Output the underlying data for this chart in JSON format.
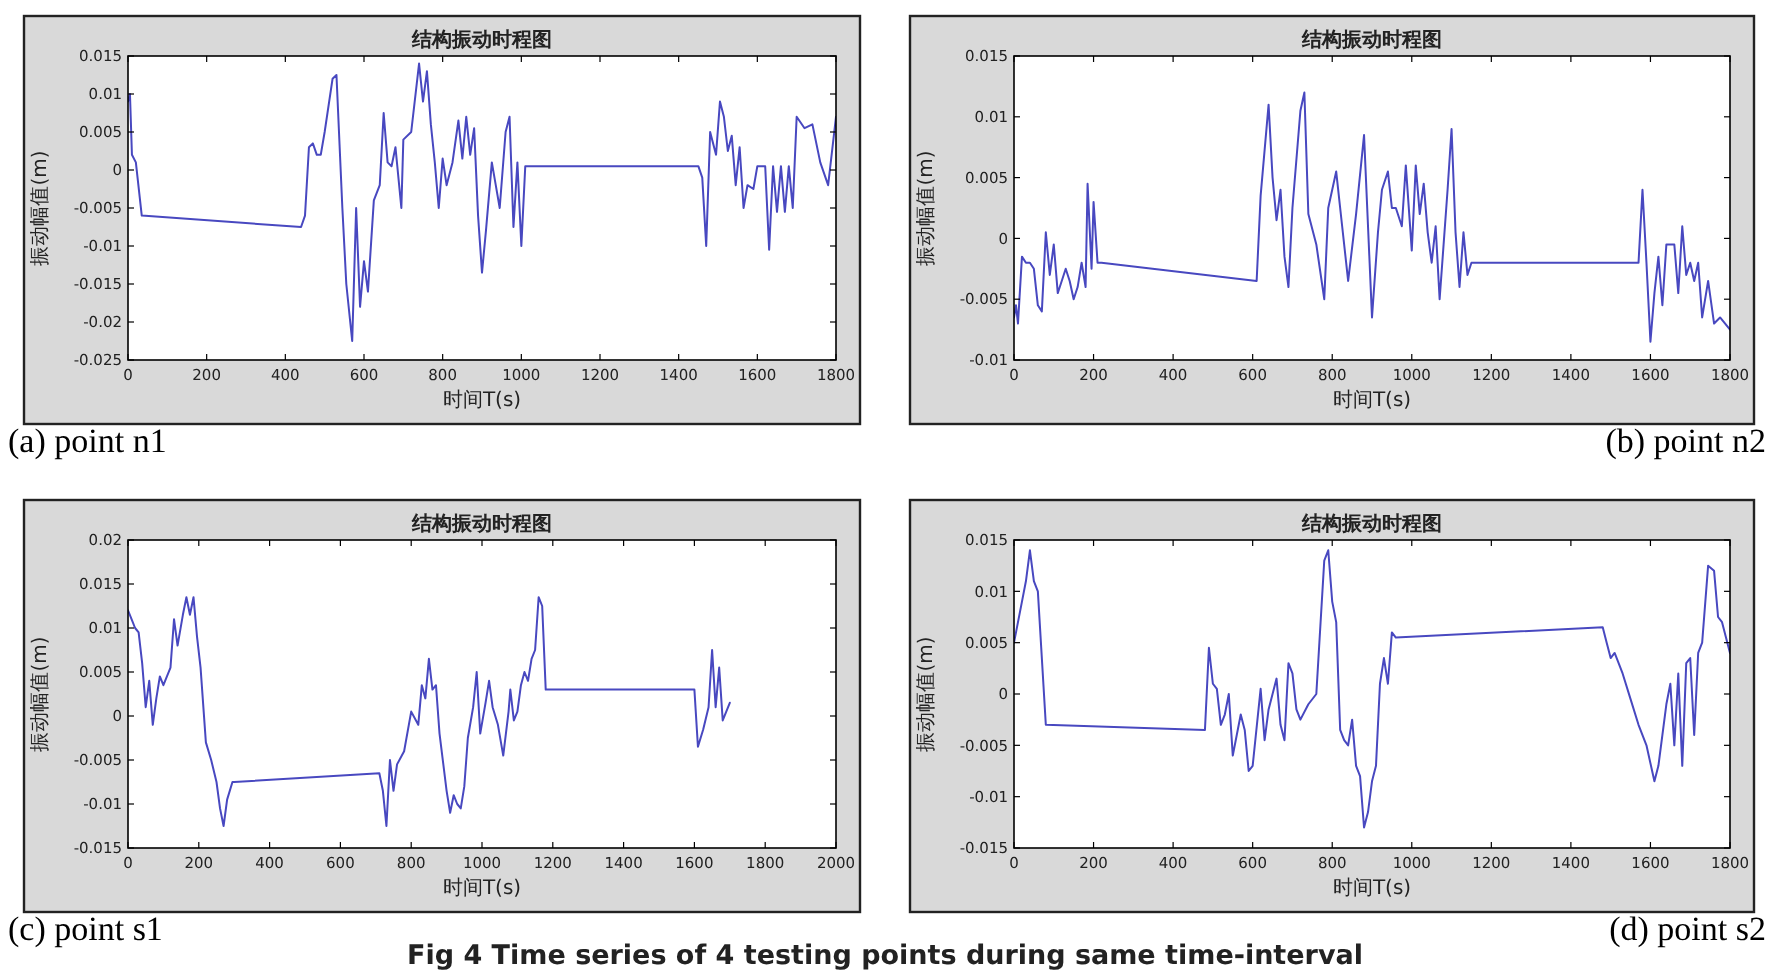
{
  "chart_data": [
    {
      "type": "line",
      "title": "结构振动时程图",
      "xlabel": "时间T(s)",
      "ylabel": "振动幅值(m)",
      "annotations": [
        "(a) point n1"
      ],
      "color": "#4848c0",
      "grid": false,
      "xlim": [
        0,
        1800
      ],
      "xticks": [
        0,
        200,
        400,
        600,
        800,
        1000,
        1200,
        1400,
        1600,
        1800
      ],
      "ylim": [
        -0.025,
        0.015
      ],
      "yticks": [
        -0.025,
        -0.02,
        -0.015,
        -0.01,
        -0.005,
        0,
        0.005,
        0.01,
        0.015
      ],
      "x": [
        0,
        5,
        10,
        20,
        35,
        440,
        450,
        460,
        470,
        480,
        490,
        500,
        520,
        530,
        545,
        555,
        570,
        580,
        590,
        600,
        610,
        625,
        640,
        650,
        660,
        670,
        680,
        695,
        700,
        720,
        740,
        750,
        760,
        770,
        780,
        790,
        800,
        810,
        825,
        840,
        850,
        860,
        870,
        880,
        890,
        900,
        910,
        925,
        935,
        945,
        960,
        970,
        980,
        990,
        1000,
        1010,
        1450,
        1460,
        1470,
        1480,
        1495,
        1505,
        1515,
        1525,
        1535,
        1545,
        1555,
        1565,
        1575,
        1590,
        1600,
        1620,
        1630,
        1640,
        1650,
        1660,
        1670,
        1680,
        1690,
        1700,
        1720,
        1740,
        1760,
        1780,
        1800
      ],
      "values": [
        0.009,
        0.01,
        0.002,
        0.001,
        -0.006,
        -0.0075,
        -0.006,
        0.003,
        0.0035,
        0.002,
        0.002,
        0.005,
        0.012,
        0.0125,
        -0.005,
        -0.015,
        -0.0225,
        -0.005,
        -0.018,
        -0.012,
        -0.016,
        -0.004,
        -0.002,
        0.0075,
        0.001,
        0.0005,
        0.003,
        -0.005,
        0.004,
        0.005,
        0.014,
        0.009,
        0.013,
        0.006,
        0.001,
        -0.005,
        0.0015,
        -0.002,
        0.001,
        0.0065,
        0.0015,
        0.007,
        0.002,
        0.0055,
        -0.006,
        -0.0135,
        -0.008,
        0.001,
        -0.002,
        -0.005,
        0.005,
        0.007,
        -0.0075,
        0.001,
        -0.01,
        0.0005,
        0.0005,
        -0.001,
        -0.01,
        0.005,
        0.002,
        0.009,
        0.007,
        0.0025,
        0.0045,
        -0.002,
        0.003,
        -0.005,
        -0.002,
        -0.0025,
        0.0005,
        0.0005,
        -0.0105,
        0.0005,
        -0.0055,
        0.0005,
        -0.0055,
        0.0005,
        -0.005,
        0.007,
        0.0055,
        0.006,
        0.001,
        -0.002,
        0.007
      ]
    },
    {
      "type": "line",
      "title": "结构振动时程图",
      "xlabel": "时间T(s)",
      "ylabel": "振动幅值(m)",
      "annotations": [
        "(b) point n2"
      ],
      "color": "#4848c0",
      "grid": false,
      "xlim": [
        0,
        1800
      ],
      "xticks": [
        0,
        200,
        400,
        600,
        800,
        1000,
        1200,
        1400,
        1600,
        1800
      ],
      "ylim": [
        -0.01,
        0.015
      ],
      "yticks": [
        -0.01,
        -0.005,
        0,
        0.005,
        0.01,
        0.015
      ],
      "x": [
        0,
        5,
        10,
        20,
        30,
        40,
        50,
        60,
        70,
        80,
        90,
        100,
        110,
        120,
        130,
        140,
        150,
        160,
        170,
        180,
        185,
        195,
        200,
        210,
        220,
        610,
        620,
        640,
        650,
        660,
        670,
        680,
        690,
        700,
        720,
        730,
        740,
        760,
        780,
        790,
        810,
        825,
        840,
        860,
        880,
        900,
        915,
        925,
        940,
        950,
        960,
        975,
        985,
        1000,
        1010,
        1020,
        1030,
        1040,
        1050,
        1060,
        1070,
        1090,
        1100,
        1110,
        1120,
        1130,
        1140,
        1150,
        1570,
        1580,
        1590,
        1600,
        1610,
        1620,
        1630,
        1640,
        1660,
        1670,
        1680,
        1690,
        1700,
        1710,
        1720,
        1730,
        1745,
        1760,
        1775,
        1800
      ],
      "values": [
        -0.0065,
        -0.0055,
        -0.007,
        -0.0015,
        -0.002,
        -0.002,
        -0.0025,
        -0.0055,
        -0.006,
        0.0005,
        -0.003,
        -0.0005,
        -0.0045,
        -0.0035,
        -0.0025,
        -0.0035,
        -0.005,
        -0.004,
        -0.002,
        -0.004,
        0.0045,
        -0.0025,
        0.003,
        -0.002,
        -0.002,
        -0.0035,
        0.0035,
        0.011,
        0.005,
        0.0015,
        0.004,
        -0.0015,
        -0.004,
        0.0025,
        0.0105,
        0.012,
        0.002,
        -0.0005,
        -0.005,
        0.0025,
        0.0055,
        0.001,
        -0.0035,
        0.002,
        0.0085,
        -0.0065,
        0.0005,
        0.004,
        0.0055,
        0.0025,
        0.0025,
        0.001,
        0.006,
        -0.001,
        0.006,
        0.002,
        0.0045,
        0.0005,
        -0.002,
        0.001,
        -0.005,
        0.004,
        0.009,
        0.0005,
        -0.004,
        0.0005,
        -0.003,
        -0.002,
        -0.002,
        0.004,
        -0.002,
        -0.0085,
        -0.0045,
        -0.0015,
        -0.0055,
        -0.0005,
        -0.0005,
        -0.0045,
        0.001,
        -0.003,
        -0.002,
        -0.0035,
        -0.002,
        -0.0065,
        -0.0035,
        -0.007,
        -0.0065,
        -0.0075
      ]
    },
    {
      "type": "line",
      "title": "结构振动时程图",
      "xlabel": "时间T(s)",
      "ylabel": "振动幅值(m)",
      "annotations": [
        "(c) point s1"
      ],
      "color": "#4848c0",
      "grid": false,
      "xlim": [
        0,
        2000
      ],
      "xticks": [
        0,
        200,
        400,
        600,
        800,
        1000,
        1200,
        1400,
        1600,
        1800,
        2000
      ],
      "ylim": [
        -0.015,
        0.02
      ],
      "yticks": [
        -0.015,
        -0.01,
        -0.005,
        0,
        0.005,
        0.01,
        0.015,
        0.02
      ],
      "x": [
        0,
        10,
        20,
        30,
        40,
        50,
        60,
        70,
        80,
        90,
        100,
        120,
        130,
        140,
        155,
        165,
        175,
        185,
        195,
        205,
        220,
        235,
        250,
        260,
        270,
        280,
        295,
        300,
        710,
        720,
        730,
        740,
        750,
        760,
        780,
        800,
        820,
        830,
        840,
        850,
        860,
        870,
        880,
        900,
        910,
        920,
        930,
        940,
        950,
        960,
        975,
        985,
        995,
        1010,
        1020,
        1030,
        1045,
        1060,
        1075,
        1080,
        1090,
        1100,
        1110,
        1120,
        1130,
        1140,
        1150,
        1160,
        1170,
        1180,
        1600,
        1610,
        1625,
        1640,
        1650,
        1660,
        1670,
        1680,
        1690,
        1700
      ],
      "values": [
        0.012,
        0.011,
        0.01,
        0.0095,
        0.006,
        0.001,
        0.004,
        -0.001,
        0.002,
        0.0045,
        0.0035,
        0.0055,
        0.011,
        0.008,
        0.0115,
        0.0135,
        0.0115,
        0.0135,
        0.009,
        0.0055,
        -0.003,
        -0.005,
        -0.0075,
        -0.0105,
        -0.0125,
        -0.0095,
        -0.0075,
        -0.0075,
        -0.0065,
        -0.0085,
        -0.0125,
        -0.005,
        -0.0085,
        -0.0055,
        -0.004,
        0.0005,
        -0.001,
        0.0035,
        0.002,
        0.0065,
        0.003,
        0.0035,
        -0.002,
        -0.0085,
        -0.011,
        -0.009,
        -0.01,
        -0.0105,
        -0.008,
        -0.0025,
        0.001,
        0.005,
        -0.002,
        0.0015,
        0.004,
        0.001,
        -0.001,
        -0.0045,
        0.0005,
        0.003,
        -0.0005,
        0.0005,
        0.0035,
        0.005,
        0.004,
        0.0065,
        0.0075,
        0.0135,
        0.0125,
        0.003,
        0.003,
        -0.0035,
        -0.0015,
        0.001,
        0.0075,
        0.001,
        0.0055,
        -0.0005,
        0.0005,
        0.0015
      ]
    },
    {
      "type": "line",
      "title": "结构振动时程图",
      "xlabel": "时间T(s)",
      "ylabel": "振动幅值(m)",
      "annotations": [
        "(d) point s2",
        "Fig 4 Time series of 4 testing points during same time-interval"
      ],
      "color": "#4848c0",
      "grid": false,
      "xlim": [
        0,
        1800
      ],
      "xticks": [
        0,
        200,
        400,
        600,
        800,
        1000,
        1200,
        1400,
        1600,
        1800
      ],
      "ylim": [
        -0.015,
        0.015
      ],
      "yticks": [
        -0.015,
        -0.01,
        -0.005,
        0,
        0.005,
        0.01,
        0.015
      ],
      "x": [
        0,
        10,
        20,
        30,
        40,
        50,
        60,
        80,
        480,
        490,
        500,
        510,
        520,
        530,
        540,
        550,
        560,
        570,
        580,
        590,
        600,
        620,
        630,
        640,
        660,
        670,
        680,
        690,
        700,
        710,
        720,
        740,
        760,
        780,
        790,
        800,
        810,
        820,
        830,
        840,
        850,
        860,
        870,
        880,
        890,
        900,
        910,
        920,
        930,
        940,
        950,
        960,
        1480,
        1490,
        1500,
        1510,
        1530,
        1550,
        1570,
        1590,
        1610,
        1620,
        1640,
        1650,
        1660,
        1670,
        1680,
        1690,
        1700,
        1710,
        1720,
        1730,
        1745,
        1760,
        1770,
        1780,
        1800
      ],
      "values": [
        0.005,
        0.007,
        0.009,
        0.011,
        0.014,
        0.011,
        0.01,
        -0.003,
        -0.0035,
        0.0045,
        0.001,
        0.0005,
        -0.003,
        -0.002,
        0,
        -0.006,
        -0.004,
        -0.002,
        -0.0035,
        -0.0075,
        -0.007,
        0.0005,
        -0.0045,
        -0.0015,
        0.0015,
        -0.003,
        -0.0045,
        0.003,
        0.002,
        -0.0015,
        -0.0025,
        -0.001,
        0,
        0.013,
        0.014,
        0.009,
        0.007,
        -0.0035,
        -0.0045,
        -0.005,
        -0.0025,
        -0.007,
        -0.008,
        -0.013,
        -0.0115,
        -0.0085,
        -0.007,
        0.001,
        0.0035,
        0.001,
        0.006,
        0.0055,
        0.0065,
        0.005,
        0.0035,
        0.004,
        0.002,
        -0.0005,
        -0.003,
        -0.005,
        -0.0085,
        -0.007,
        -0.001,
        0.001,
        -0.005,
        0.002,
        -0.007,
        0.003,
        0.0035,
        -0.004,
        0.004,
        0.005,
        0.0125,
        0.012,
        0.0075,
        0.007,
        0.004
      ]
    }
  ]
}
